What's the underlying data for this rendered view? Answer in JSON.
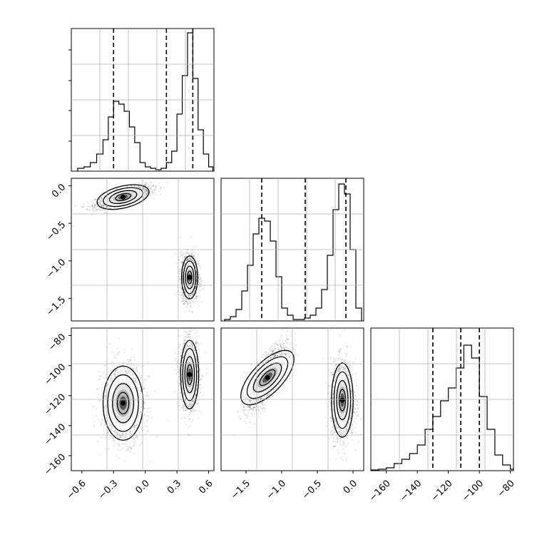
{
  "chart_data": [
    {
      "type": "histogram",
      "panel": "diag-0",
      "xlim": [
        -0.7,
        0.65
      ],
      "ylim": [
        0,
        1.0
      ],
      "grid": true,
      "bins": [
        [
          -0.64,
          -0.58,
          0.02
        ],
        [
          -0.58,
          -0.52,
          0.03
        ],
        [
          -0.52,
          -0.46,
          0.06
        ],
        [
          -0.46,
          -0.4,
          0.12
        ],
        [
          -0.4,
          -0.35,
          0.22
        ],
        [
          -0.35,
          -0.3,
          0.38
        ],
        [
          -0.3,
          -0.25,
          0.49
        ],
        [
          -0.25,
          -0.2,
          0.47
        ],
        [
          -0.2,
          -0.15,
          0.42
        ],
        [
          -0.15,
          -0.1,
          0.31
        ],
        [
          -0.1,
          -0.05,
          0.2
        ],
        [
          -0.05,
          0.0,
          0.06
        ],
        [
          0.0,
          0.05,
          0.03
        ],
        [
          0.05,
          0.1,
          0.02
        ],
        [
          0.1,
          0.15,
          0.01
        ],
        [
          0.15,
          0.2,
          0.02
        ],
        [
          0.2,
          0.25,
          0.06
        ],
        [
          0.25,
          0.3,
          0.14
        ],
        [
          0.3,
          0.35,
          0.4
        ],
        [
          0.35,
          0.4,
          0.67
        ],
        [
          0.4,
          0.45,
          0.97
        ],
        [
          0.45,
          0.5,
          0.65
        ],
        [
          0.5,
          0.55,
          0.29
        ],
        [
          0.55,
          0.6,
          0.12
        ],
        [
          0.6,
          0.64,
          0.03
        ]
      ],
      "quantiles": [
        -0.3,
        0.2,
        0.45
      ]
    },
    {
      "type": "scatter_density",
      "panel": "pair-1-0",
      "xlim": [
        -0.7,
        0.65
      ],
      "ylim": [
        -1.8,
        0.1
      ],
      "yticks": [
        0.0,
        -0.5,
        -1.0,
        -1.5
      ],
      "yticklabels": [
        "0.0",
        "−0.5",
        "−1.0",
        "−1.5"
      ],
      "grid": true,
      "clusters": [
        {
          "x": -0.21,
          "y": -0.15,
          "sx": 0.13,
          "sy": 0.07,
          "rho": 0.7,
          "n": 1400
        },
        {
          "x": 0.42,
          "y": -1.22,
          "sx": 0.04,
          "sy": 0.15,
          "rho": 0.0,
          "n": 1400
        }
      ]
    },
    {
      "type": "histogram",
      "panel": "diag-1",
      "xlim": [
        -1.85,
        0.15
      ],
      "ylim": [
        0,
        1.0
      ],
      "grid": true,
      "bins": [
        [
          -1.8,
          -1.72,
          0.01
        ],
        [
          -1.72,
          -1.64,
          0.03
        ],
        [
          -1.64,
          -1.56,
          0.08
        ],
        [
          -1.56,
          -1.48,
          0.21
        ],
        [
          -1.48,
          -1.4,
          0.39
        ],
        [
          -1.4,
          -1.32,
          0.61
        ],
        [
          -1.32,
          -1.24,
          0.72
        ],
        [
          -1.24,
          -1.16,
          0.7
        ],
        [
          -1.16,
          -1.08,
          0.56
        ],
        [
          -1.08,
          -1.0,
          0.31
        ],
        [
          -1.0,
          -0.92,
          0.09
        ],
        [
          -0.92,
          -0.84,
          0.04
        ],
        [
          -0.84,
          -0.76,
          0.01
        ],
        [
          -0.76,
          -0.68,
          0.01
        ],
        [
          -0.68,
          -0.6,
          0.02
        ],
        [
          -0.6,
          -0.52,
          0.04
        ],
        [
          -0.52,
          -0.44,
          0.09
        ],
        [
          -0.44,
          -0.36,
          0.22
        ],
        [
          -0.36,
          -0.28,
          0.46
        ],
        [
          -0.28,
          -0.2,
          0.78
        ],
        [
          -0.2,
          -0.12,
          0.96
        ],
        [
          -0.12,
          -0.04,
          0.89
        ],
        [
          -0.04,
          0.04,
          0.5
        ],
        [
          0.04,
          0.12,
          0.09
        ]
      ],
      "quantiles": [
        -1.28,
        -0.67,
        -0.1
      ]
    },
    {
      "type": "scatter_density",
      "panel": "pair-2-0",
      "xlim": [
        -0.7,
        0.65
      ],
      "ylim": [
        -170,
        -75
      ],
      "yticks": [
        -80,
        -100,
        -120,
        -140,
        -160
      ],
      "yticklabels": [
        "−80",
        "−100",
        "−120",
        "−140",
        "−160"
      ],
      "xticks": [
        -0.6,
        -0.3,
        0.0,
        0.3,
        0.6
      ],
      "xticklabels": [
        "−0.6",
        "−0.3",
        "0.0",
        "0.3",
        "0.6"
      ],
      "grid": true,
      "clusters": [
        {
          "x": -0.21,
          "y": -125,
          "sx": 0.1,
          "sy": 13,
          "rho": 0.0,
          "n": 1400
        },
        {
          "x": 0.42,
          "y": -106,
          "sx": 0.045,
          "sy": 12,
          "rho": 0.0,
          "n": 1400
        }
      ]
    },
    {
      "type": "scatter_density",
      "panel": "pair-2-1",
      "xlim": [
        -1.85,
        0.15
      ],
      "ylim": [
        -170,
        -75
      ],
      "xticks": [
        -1.5,
        -1.0,
        -0.5,
        0.0
      ],
      "xticklabels": [
        "−1.5",
        "−1.0",
        "−0.5",
        "0.0"
      ],
      "grid": true,
      "clusters": [
        {
          "x": -1.2,
          "y": -108,
          "sx": 0.14,
          "sy": 11,
          "rho": 0.75,
          "n": 1400
        },
        {
          "x": -0.15,
          "y": -123,
          "sx": 0.08,
          "sy": 13,
          "rho": 0.0,
          "n": 1400
        }
      ]
    },
    {
      "type": "histogram",
      "panel": "diag-2",
      "xlim": [
        -170,
        -78
      ],
      "ylim": [
        0,
        1.0
      ],
      "grid": true,
      "xticks": [
        -160,
        -140,
        -120,
        -100,
        -80
      ],
      "xticklabels": [
        "−160",
        "−140",
        "−120",
        "−100",
        "−80"
      ],
      "bins": [
        [
          -170,
          -165,
          0.005
        ],
        [
          -165,
          -160,
          0.01
        ],
        [
          -160,
          -155,
          0.02
        ],
        [
          -155,
          -150,
          0.05
        ],
        [
          -150,
          -145,
          0.08
        ],
        [
          -145,
          -140,
          0.12
        ],
        [
          -140,
          -135,
          0.18
        ],
        [
          -135,
          -130,
          0.29
        ],
        [
          -130,
          -125,
          0.38
        ],
        [
          -125,
          -120,
          0.49
        ],
        [
          -120,
          -115,
          0.58
        ],
        [
          -115,
          -110,
          0.72
        ],
        [
          -110,
          -105,
          0.88
        ],
        [
          -105,
          -100,
          0.79
        ],
        [
          -100,
          -95,
          0.52
        ],
        [
          -95,
          -90,
          0.29
        ],
        [
          -90,
          -85,
          0.11
        ],
        [
          -85,
          -80,
          0.04
        ],
        [
          -80,
          -78,
          0.01
        ]
      ],
      "quantiles": [
        -130,
        -112,
        -100
      ]
    }
  ]
}
